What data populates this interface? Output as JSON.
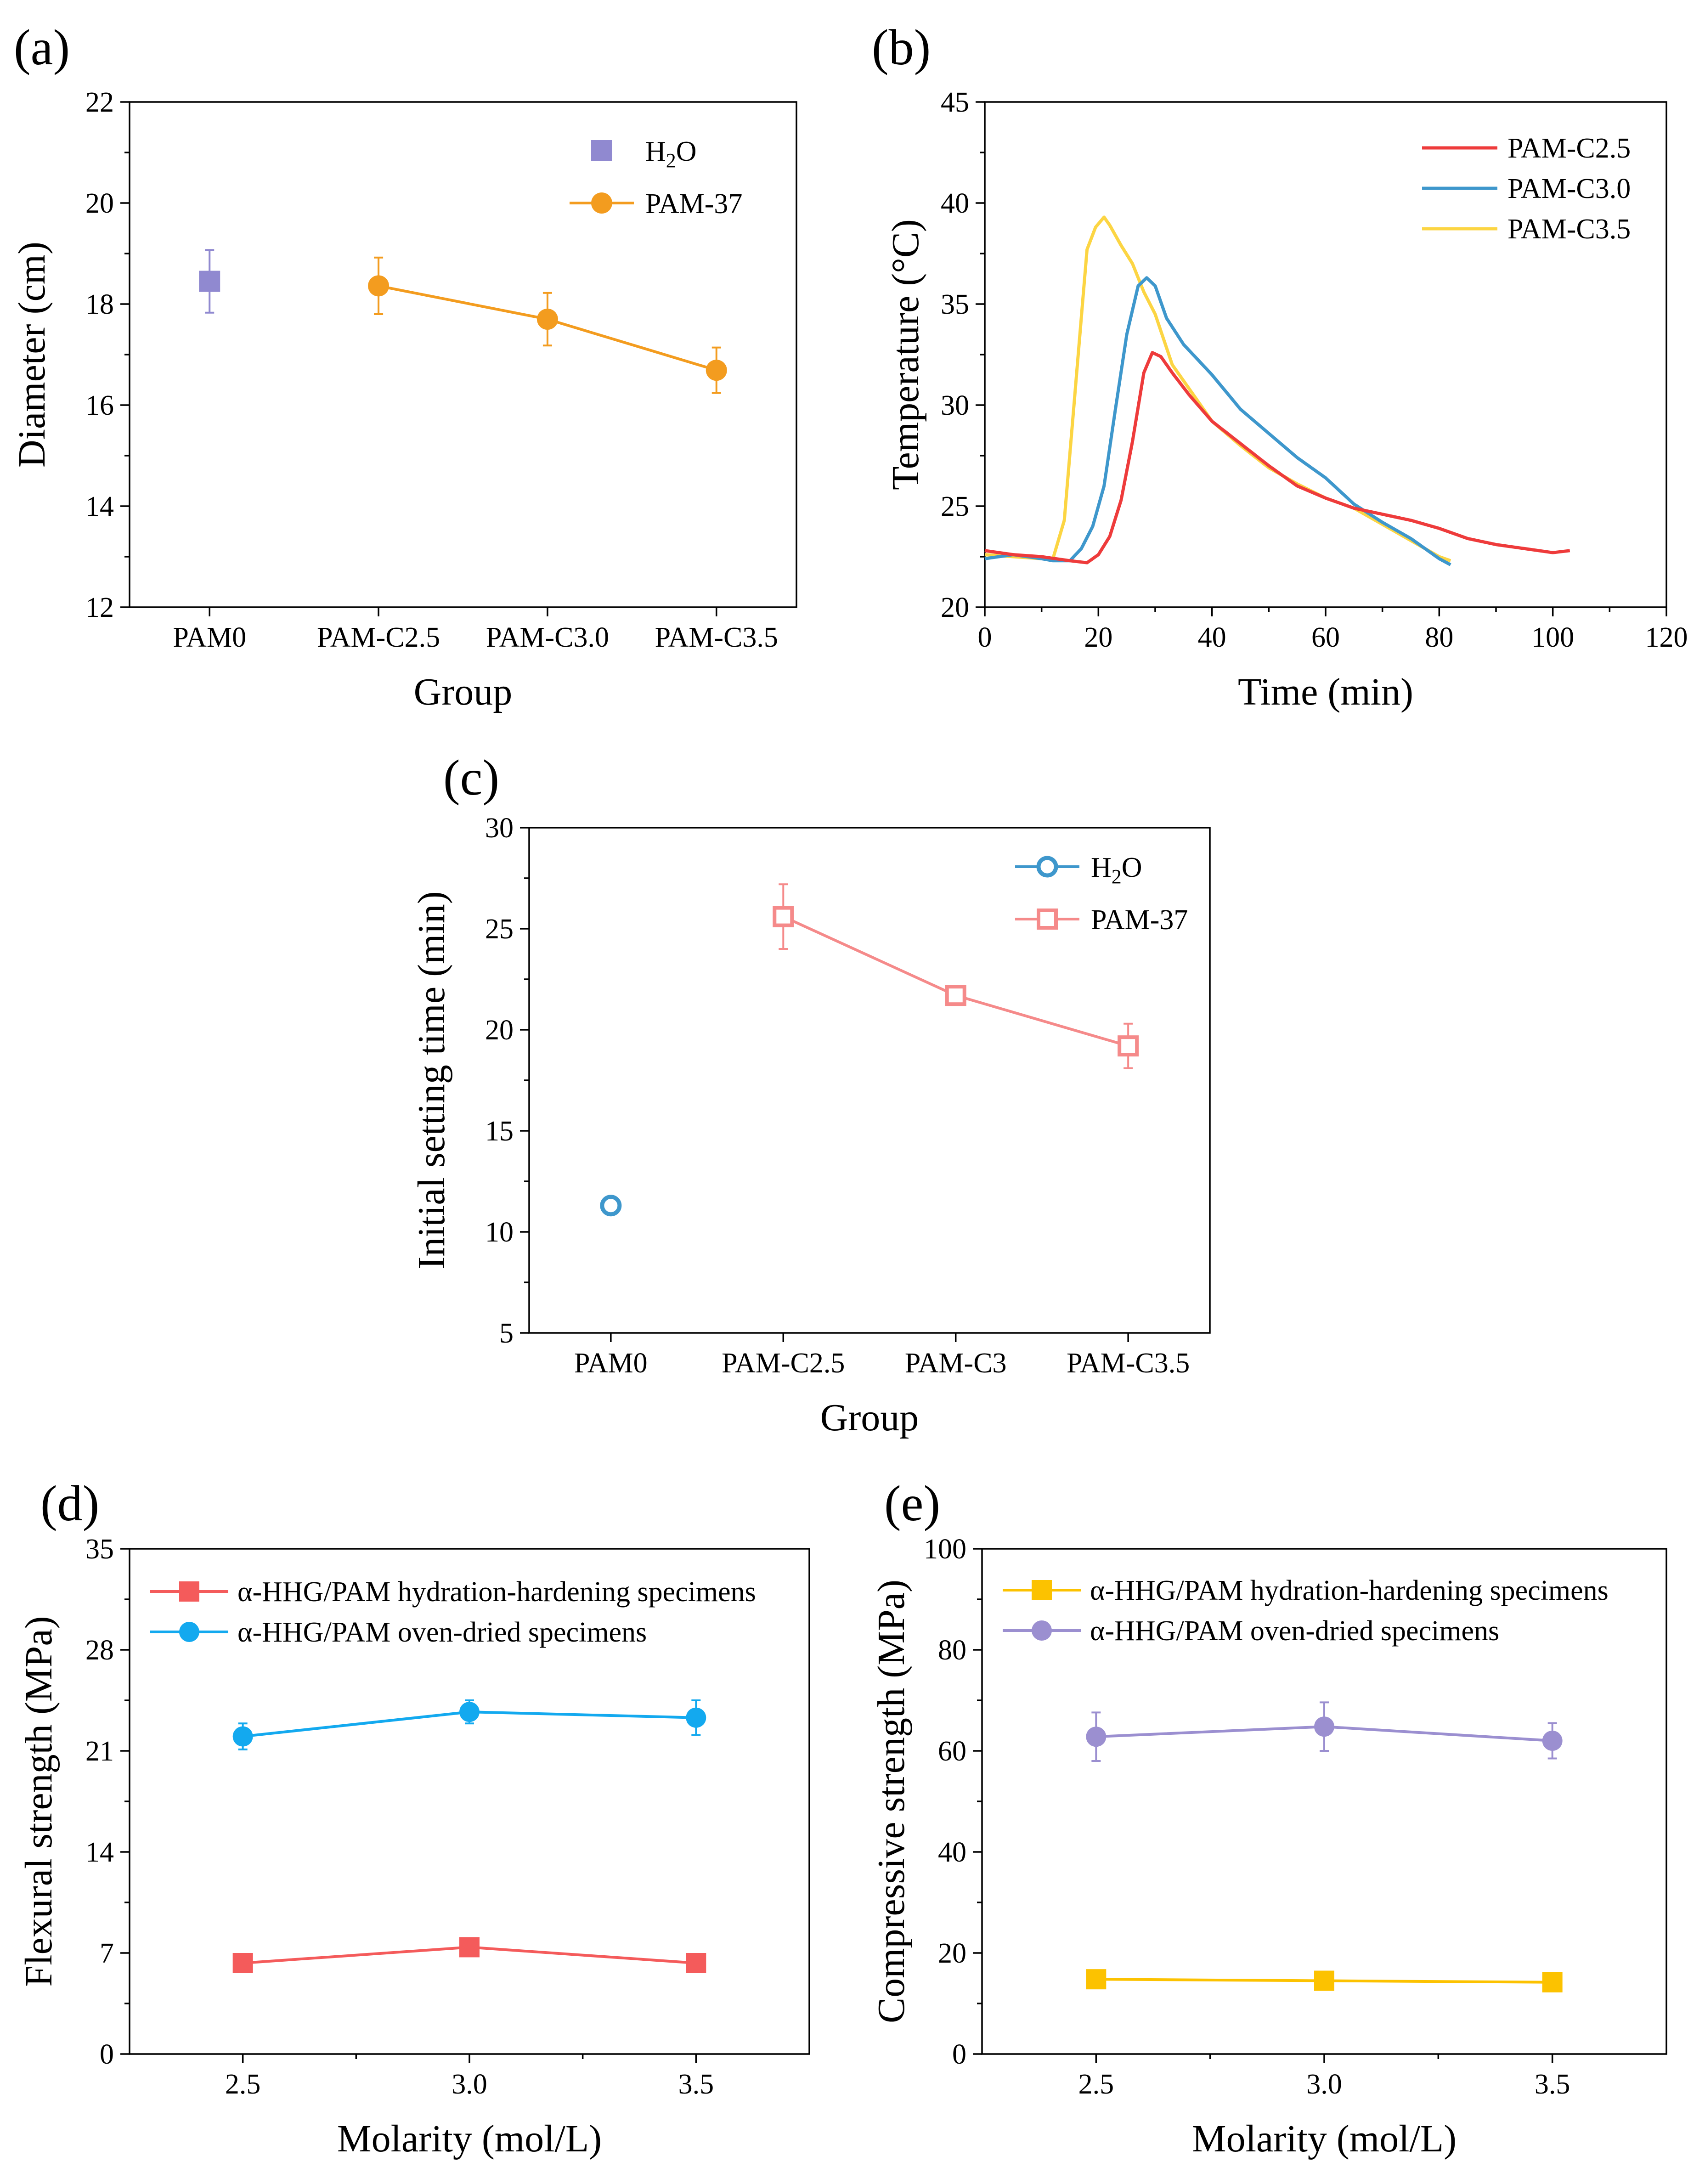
{
  "colors": {
    "purple": "#9089d0",
    "orange": "#f39c1f",
    "red": "#ee3b3b",
    "blue": "#3e97cc",
    "yellow": "#fcd543",
    "pink": "#f58a8a",
    "salmon": "#f45b5b",
    "sky": "#13a9ef",
    "gold": "#fcc200",
    "lavender": "#9b8fd0"
  },
  "chart_data": [
    {
      "panel": "(a)",
      "type": "line",
      "categories": [
        "PAM0",
        "PAM-C2.5",
        "PAM-C3.0",
        "PAM-C3.5"
      ],
      "xlabel": "Group",
      "ylabel": "Diameter (cm)",
      "ylim": [
        12,
        22
      ],
      "yticks": [
        12,
        14,
        16,
        18,
        20,
        22
      ],
      "legend_position": "top-right",
      "series": [
        {
          "name": "H2O",
          "name_main": "H",
          "name_sub": "2",
          "name_tail": "O",
          "marker": "square",
          "connected": false,
          "points": [
            {
              "category": "PAM0",
              "value": 18.45,
              "error": 0.62
            }
          ]
        },
        {
          "name": "PAM-37",
          "marker": "circle",
          "connected": true,
          "points": [
            {
              "category": "PAM-C2.5",
              "value": 18.36,
              "error": 0.56
            },
            {
              "category": "PAM-C3.0",
              "value": 17.7,
              "error": 0.52
            },
            {
              "category": "PAM-C3.5",
              "value": 16.69,
              "error": 0.45
            }
          ]
        }
      ]
    },
    {
      "panel": "(b)",
      "type": "line",
      "xlabel": "Time (min)",
      "ylabel": "Temperature (°C)",
      "xlim": [
        0,
        120
      ],
      "ylim": [
        20,
        45
      ],
      "xticks": [
        0,
        20,
        40,
        60,
        80,
        100,
        120
      ],
      "yticks": [
        20,
        25,
        30,
        35,
        40,
        45
      ],
      "legend_position": "top-right",
      "series": [
        {
          "name": "PAM-C2.5",
          "x": [
            0,
            5,
            10,
            15,
            18,
            20,
            22,
            24,
            26,
            28,
            29.5,
            31,
            33,
            36,
            40,
            45,
            50,
            55,
            60,
            65,
            70,
            75,
            80,
            85,
            90,
            95,
            100,
            103
          ],
          "y": [
            22.8,
            22.6,
            22.5,
            22.3,
            22.2,
            22.6,
            23.5,
            25.3,
            28.2,
            31.6,
            32.6,
            32.4,
            31.6,
            30.5,
            29.2,
            28.1,
            27.0,
            26.0,
            25.4,
            24.9,
            24.6,
            24.3,
            23.9,
            23.4,
            23.1,
            22.9,
            22.7,
            22.8
          ]
        },
        {
          "name": "PAM-C3.0",
          "x": [
            0,
            5,
            10,
            12,
            15,
            17,
            19,
            21,
            23,
            25,
            27,
            28.5,
            30,
            32,
            35,
            40,
            45,
            50,
            55,
            60,
            65,
            70,
            75,
            80,
            82
          ],
          "y": [
            22.4,
            22.6,
            22.4,
            22.3,
            22.3,
            22.9,
            24.0,
            26.0,
            29.8,
            33.5,
            35.9,
            36.3,
            35.9,
            34.3,
            33.0,
            31.5,
            29.8,
            28.6,
            27.4,
            26.4,
            25.1,
            24.2,
            23.4,
            22.4,
            22.1
          ]
        },
        {
          "name": "PAM-C3.5",
          "x": [
            0,
            5,
            10,
            12,
            14,
            16,
            18,
            19.5,
            21,
            22,
            24,
            26,
            28,
            30,
            33,
            36,
            40,
            45,
            50,
            55,
            60,
            65,
            70,
            75,
            80,
            82
          ],
          "y": [
            22.6,
            22.5,
            22.4,
            22.4,
            24.3,
            31.0,
            37.7,
            38.8,
            39.3,
            38.9,
            37.9,
            37.0,
            35.6,
            34.5,
            32.0,
            30.8,
            29.2,
            28.0,
            26.9,
            26.1,
            25.4,
            24.9,
            24.1,
            23.3,
            22.5,
            22.3
          ]
        }
      ]
    },
    {
      "panel": "(c)",
      "type": "line",
      "categories": [
        "PAM0",
        "PAM-C2.5",
        "PAM-C3",
        "PAM-C3.5"
      ],
      "xlabel": "Group",
      "ylabel": "Initial setting time (min)",
      "ylim": [
        5,
        30
      ],
      "yticks": [
        5,
        10,
        15,
        20,
        25,
        30
      ],
      "legend_position": "top-right",
      "series": [
        {
          "name": "H2O",
          "name_main": "H",
          "name_sub": "2",
          "name_tail": "O",
          "marker": "open-circle",
          "connected": false,
          "points": [
            {
              "category": "PAM0",
              "value": 11.3,
              "error": 0.3
            }
          ]
        },
        {
          "name": "PAM-37",
          "marker": "open-square",
          "connected": true,
          "points": [
            {
              "category": "PAM-C2.5",
              "value": 25.6,
              "error": 1.6
            },
            {
              "category": "PAM-C3",
              "value": 21.7,
              "error": 0.4
            },
            {
              "category": "PAM-C3.5",
              "value": 19.2,
              "error": 1.1
            }
          ]
        }
      ]
    },
    {
      "panel": "(d)",
      "type": "line",
      "xlabel": "Molarity (mol/L)",
      "ylabel": "Flexural strength (MPa)",
      "xlim": [
        2.25,
        3.75
      ],
      "ylim": [
        0,
        35
      ],
      "xticks": [
        2.5,
        3.0,
        3.5
      ],
      "xtick_labels": [
        "2.5",
        "3.0",
        "3.5"
      ],
      "yticks": [
        0,
        7,
        14,
        21,
        28,
        35
      ],
      "legend_position": "top-left",
      "series": [
        {
          "name": "α-HHG/PAM hydration-hardening specimens",
          "marker": "square",
          "x": [
            2.5,
            3.0,
            3.5
          ],
          "y": [
            6.3,
            7.4,
            6.3
          ],
          "error": [
            0.15,
            0.25,
            0.2
          ]
        },
        {
          "name": "α-HHG/PAM oven-dried specimens",
          "marker": "circle",
          "x": [
            2.5,
            3.0,
            3.5
          ],
          "y": [
            22.0,
            23.7,
            23.3
          ],
          "error": [
            0.9,
            0.8,
            1.2
          ]
        }
      ]
    },
    {
      "panel": "(e)",
      "type": "line",
      "xlabel": "Molarity (mol/L)",
      "ylabel": "Compressive strength (MPa)",
      "xlim": [
        2.25,
        3.75
      ],
      "ylim": [
        0,
        100
      ],
      "xticks": [
        2.5,
        3.0,
        3.5
      ],
      "xtick_labels": [
        "2.5",
        "3.0",
        "3.5"
      ],
      "yticks": [
        0,
        20,
        40,
        60,
        80,
        100
      ],
      "legend_position": "top-left",
      "series": [
        {
          "name": "α-HHG/PAM hydration-hardening specimens",
          "marker": "square",
          "x": [
            2.5,
            3.0,
            3.5
          ],
          "y": [
            14.8,
            14.5,
            14.2
          ],
          "error": [
            0.3,
            0.3,
            0.3
          ]
        },
        {
          "name": "α-HHG/PAM oven-dried specimens",
          "marker": "circle",
          "x": [
            2.5,
            3.0,
            3.5
          ],
          "y": [
            62.8,
            64.8,
            62.0
          ],
          "error": [
            4.8,
            4.8,
            3.5
          ]
        }
      ]
    }
  ]
}
